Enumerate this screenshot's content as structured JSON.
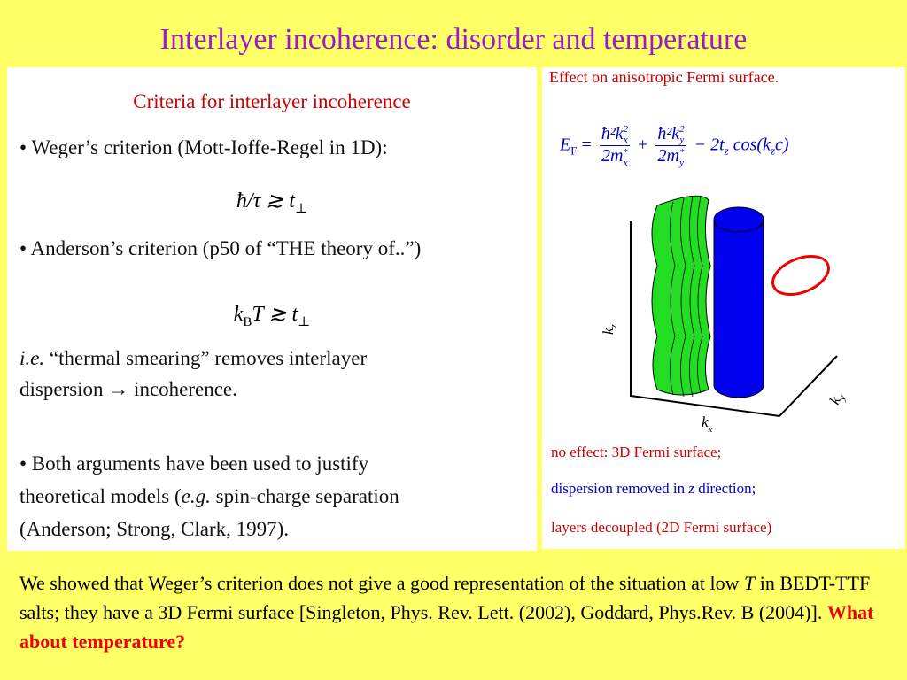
{
  "title": "Interlayer incoherence: disorder and temperature",
  "left": {
    "heading": "Criteria for interlayer incoherence",
    "weger": "• Weger’s criterion (Mott-Ioffe-Regel in 1D):",
    "weger_formula": {
      "main": "ħ/τ ≳ t",
      "sub": "⊥"
    },
    "anderson": "• Anderson’s criterion (p50 of “THE theory of..”)",
    "anderson_formula": {
      "k": "k",
      "sub": "B",
      "main": "T ≳ t",
      "sub2": "⊥"
    },
    "ie": "i.e.",
    "smearing1": "“thermal smearing” removes interlayer",
    "smearing2": "dispersion → incoherence.",
    "both1": "• Both arguments have been used to justify",
    "both2a": "theoretical models (",
    "both2b": "e.g.",
    "both2c": " spin-charge separation",
    "both3": "(Anderson; Strong, Clark, 1997)."
  },
  "right": {
    "heading": "Effect on anisotropic Fermi surface.",
    "formula": {
      "E": "E",
      "Esub": "F",
      "eq": "=",
      "n1": "ħ²k",
      "n1sub": "x",
      "n1sup": "2",
      "d1": "2m",
      "d1sub": "x",
      "d1sup": "*",
      "plus": "+",
      "n2": "ħ²k",
      "n2sub": "y",
      "n2sup": "2",
      "d2": "2m",
      "d2sub": "y",
      "d2sup": "*",
      "minus": "− 2t",
      "tsub": "z",
      "cos": " cos(k",
      "ksub": "z",
      "end": "c)"
    },
    "axes": {
      "kz": "k",
      "kz_sub": "z",
      "kx": "k",
      "kx_sub": "x",
      "ky": "k",
      "ky_sub": "y"
    },
    "note1": "no effect: 3D Fermi surface;",
    "note2a": "dispersion removed in ",
    "note2b": "z",
    "note2c": " direction;",
    "note3": "layers decoupled (2D Fermi surface)"
  },
  "footer": {
    "a": "We showed that Weger’s criterion does not give a good representation of the situation at low ",
    "T": "T",
    "b": " in BEDT-TTF salts; they have a 3D Fermi surface [Singleton, Phys. Rev. Lett. (2002), Goddard, Phys.Rev. B (2004)]. ",
    "c": "What about temperature?"
  }
}
